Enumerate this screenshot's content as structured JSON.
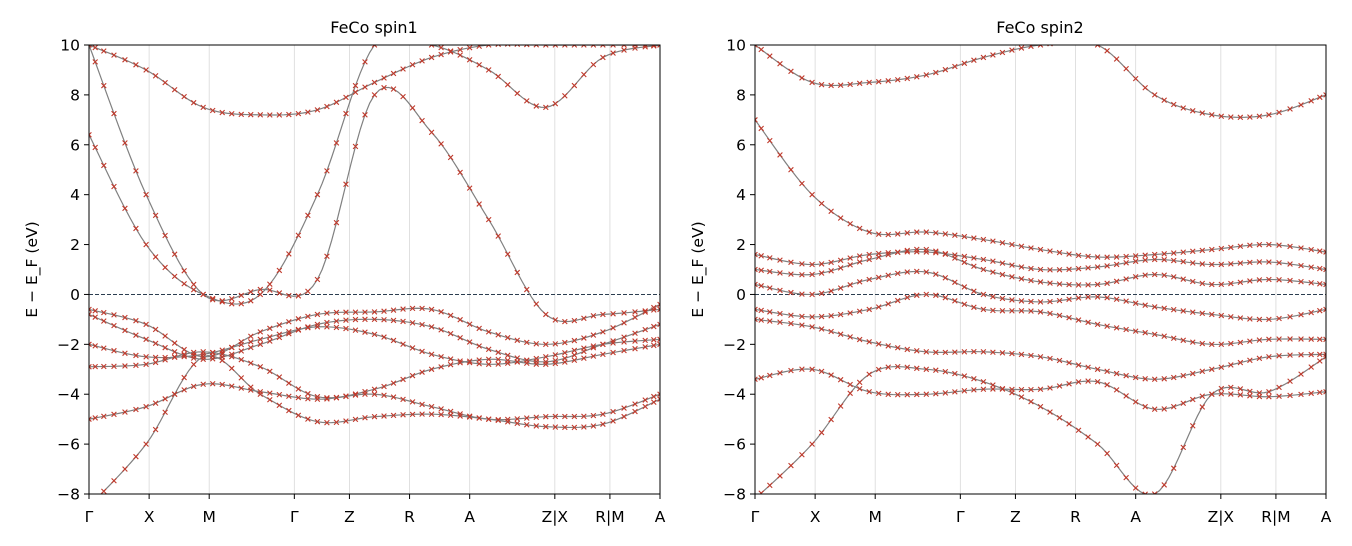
{
  "chart_data": [
    {
      "type": "line",
      "title": "FeCo  spin1",
      "ylabel": "E − E_F  (eV)",
      "ylim": [
        -8,
        10
      ],
      "yticks": [
        -8,
        -6,
        -4,
        -2,
        0,
        2,
        4,
        6,
        8,
        10
      ],
      "ytick_labels": [
        "−8",
        "−6",
        "−4",
        "−2",
        "0",
        "2",
        "4",
        "6",
        "8",
        "10"
      ],
      "xlim": [
        0,
        1
      ],
      "kpoint_positions": [
        0,
        0.1053,
        0.2105,
        0.3596,
        0.4561,
        0.5614,
        0.6667,
        0.8158,
        0.9123,
        1.0
      ],
      "kpoint_labels": [
        "Γ",
        "X",
        "M",
        "Γ",
        "Z",
        "R",
        "A",
        "Z|X",
        "R|M",
        "A"
      ],
      "fermi_level": 0,
      "grid": "vertical lines at k-points",
      "marker": "x",
      "colors": {
        "line": "#808080",
        "marker": "#c0392b",
        "fermi": "#2c3e50"
      },
      "series": [
        {
          "y": [
            6.4,
            2.0,
            0.0,
            0.0,
            4.0,
            10.0,
            10.0,
            9.0,
            7.5,
            9.5,
            10.0
          ]
        },
        {
          "y": [
            10.0,
            4.0,
            0.0,
            0.2,
            0.6,
            8.0,
            6.5,
            3.0,
            -0.8,
            -0.8,
            -0.6
          ]
        },
        {
          "y": [
            10.0,
            9.0,
            7.5,
            7.2,
            7.4,
            8.5,
            9.5,
            10.0,
            10.0,
            10.0,
            10.0
          ]
        },
        {
          "y": [
            -0.6,
            -1.2,
            -2.5,
            -1.5,
            -0.8,
            -0.7,
            -0.6,
            -1.5,
            -2.0,
            -1.5,
            -0.4
          ]
        },
        {
          "y": [
            -0.8,
            -1.8,
            -2.6,
            -2.0,
            -1.2,
            -1.0,
            -1.3,
            -2.2,
            -2.7,
            -2.0,
            -1.2
          ]
        },
        {
          "y": [
            -2.0,
            -2.5,
            -2.4,
            -1.8,
            -1.3,
            -1.6,
            -2.4,
            -2.8,
            -2.5,
            -2.0,
            -1.8
          ]
        },
        {
          "y": [
            -2.9,
            -2.8,
            -2.3,
            -2.9,
            -4.1,
            -3.8,
            -3.0,
            -2.6,
            -2.8,
            -2.4,
            -2.0
          ]
        },
        {
          "y": [
            -5.0,
            -4.5,
            -3.6,
            -3.9,
            -4.2,
            -4.0,
            -4.5,
            -5.0,
            -4.9,
            -4.8,
            -4.0
          ]
        },
        {
          "y": [
            -8.5,
            -6.0,
            -2.5,
            -4.0,
            -5.1,
            -4.9,
            -4.8,
            -5.0,
            -5.3,
            -5.2,
            -4.2
          ]
        }
      ]
    },
    {
      "type": "line",
      "title": "FeCo  spin2",
      "ylabel": "E − E_F  (eV)",
      "ylim": [
        -8,
        10
      ],
      "yticks": [
        -8,
        -6,
        -4,
        -2,
        0,
        2,
        4,
        6,
        8,
        10
      ],
      "ytick_labels": [
        "−8",
        "−6",
        "−4",
        "−2",
        "0",
        "2",
        "4",
        "6",
        "8",
        "10"
      ],
      "xlim": [
        0,
        1
      ],
      "kpoint_positions": [
        0,
        0.1053,
        0.2105,
        0.3596,
        0.4561,
        0.5614,
        0.6667,
        0.8158,
        0.9123,
        1.0
      ],
      "kpoint_labels": [
        "Γ",
        "X",
        "M",
        "Γ",
        "Z",
        "R",
        "A",
        "Z|X",
        "R|M",
        "A"
      ],
      "fermi_level": 0,
      "grid": "vertical lines at k-points",
      "marker": "x",
      "colors": {
        "line": "#808080",
        "marker": "#c0392b",
        "fermi": "#2c3e50"
      },
      "series": [
        {
          "y": [
            7.0,
            4.0,
            2.5,
            2.5,
            2.2,
            1.8,
            1.5,
            1.6,
            1.8,
            2.0,
            1.7
          ]
        },
        {
          "y": [
            10.0,
            8.5,
            8.5,
            8.8,
            9.5,
            10.0,
            10.0,
            8.0,
            7.2,
            7.2,
            8.0
          ]
        },
        {
          "y": [
            1.6,
            1.2,
            1.6,
            1.7,
            1.4,
            1.0,
            1.1,
            1.4,
            1.2,
            1.3,
            1.0
          ]
        },
        {
          "y": [
            1.0,
            0.8,
            1.4,
            1.8,
            1.0,
            0.5,
            0.4,
            0.8,
            0.4,
            0.6,
            0.4
          ]
        },
        {
          "y": [
            0.4,
            0.0,
            0.6,
            0.9,
            0.0,
            -0.3,
            -0.1,
            -0.5,
            -0.8,
            -1.0,
            -0.6
          ]
        },
        {
          "y": [
            -0.6,
            -0.9,
            -0.6,
            0.0,
            -0.6,
            -0.7,
            -1.2,
            -1.6,
            -2.0,
            -1.8,
            -1.8
          ]
        },
        {
          "y": [
            -1.0,
            -1.3,
            -1.9,
            -2.3,
            -2.3,
            -2.5,
            -3.0,
            -3.4,
            -3.0,
            -2.5,
            -2.4
          ]
        },
        {
          "y": [
            -3.4,
            -3.0,
            -3.9,
            -4.0,
            -3.8,
            -3.8,
            -3.5,
            -4.6,
            -4.0,
            -4.1,
            -3.9
          ]
        },
        {
          "y": [
            -8.2,
            -6.0,
            -3.2,
            -3.0,
            -3.5,
            -4.5,
            -6.0,
            -8.0,
            -4.0,
            -3.9,
            -2.5
          ]
        }
      ]
    }
  ]
}
